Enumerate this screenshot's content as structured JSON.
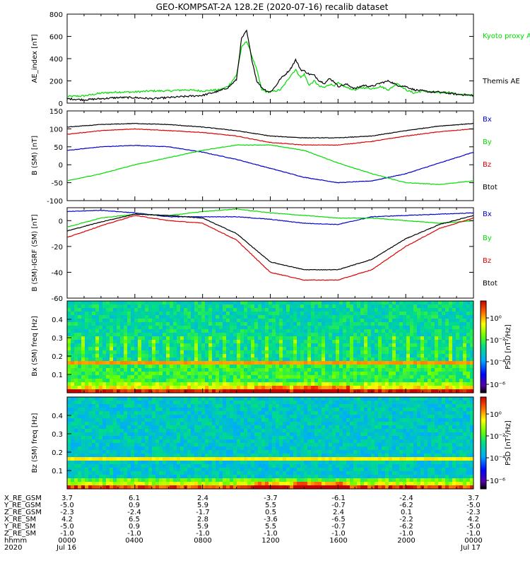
{
  "title": "GEO-KOMPSAT-2A 128.2E (2020-07-16) recalib dataset",
  "chart_data": [
    {
      "type": "line",
      "ylabel": "AE_index [nT]",
      "ylim": [
        0,
        800
      ],
      "yticks": [
        "0",
        "200",
        "400",
        "600",
        "800"
      ],
      "legend_placement": "right",
      "series": [
        {
          "name": "Kyoto proxy AE",
          "color": "#00dd00",
          "x": [
            0,
            1,
            2,
            3,
            4,
            5,
            6,
            7,
            8,
            9,
            9.5,
            10,
            10.3,
            10.6,
            10.9,
            11.2,
            11.5,
            11.8,
            12,
            12.3,
            12.6,
            12.9,
            13.2,
            13.5,
            13.8,
            14,
            14.3,
            14.6,
            14.9,
            15.2,
            15.5,
            15.8,
            16,
            16.5,
            17,
            17.5,
            18,
            18.5,
            19,
            19.5,
            20,
            20.5,
            21,
            21.5,
            22,
            22.5,
            23,
            24
          ],
          "y": [
            60,
            65,
            90,
            100,
            100,
            110,
            110,
            120,
            110,
            120,
            150,
            250,
            500,
            560,
            430,
            300,
            120,
            100,
            100,
            110,
            120,
            180,
            250,
            300,
            230,
            260,
            160,
            200,
            150,
            140,
            170,
            160,
            180,
            140,
            120,
            140,
            130,
            150,
            120,
            180,
            120,
            90,
            110,
            100,
            90,
            100,
            80,
            70
          ]
        },
        {
          "name": "Themis AE",
          "color": "#000000",
          "x": [
            0,
            1,
            2,
            3,
            4,
            5,
            6,
            7,
            8,
            9,
            9.5,
            10,
            10.3,
            10.6,
            10.9,
            11.2,
            11.5,
            11.8,
            12,
            12.3,
            12.6,
            12.9,
            13.2,
            13.5,
            13.8,
            14,
            14.3,
            14.6,
            14.9,
            15.2,
            15.5,
            15.8,
            16,
            16.5,
            17,
            17.5,
            18,
            18.5,
            19,
            19.5,
            20,
            20.5,
            21,
            21.5,
            22,
            22.5,
            23,
            24
          ],
          "y": [
            40,
            30,
            40,
            50,
            50,
            40,
            50,
            60,
            70,
            110,
            140,
            210,
            580,
            650,
            400,
            200,
            140,
            110,
            100,
            150,
            220,
            260,
            310,
            390,
            300,
            290,
            260,
            250,
            200,
            180,
            220,
            190,
            150,
            170,
            130,
            160,
            150,
            180,
            200,
            160,
            150,
            120,
            110,
            100,
            100,
            90,
            80,
            70
          ]
        }
      ]
    },
    {
      "type": "line",
      "ylabel": "B (SM) [nT]",
      "ylim": [
        -100,
        150
      ],
      "yticks": [
        "-100",
        "-50",
        "0",
        "50",
        "100",
        "150"
      ],
      "legend_placement": "right",
      "series": [
        {
          "name": "Bx",
          "color": "#0000cc",
          "x": [
            0,
            2,
            4,
            6,
            8,
            10,
            12,
            14,
            16,
            18,
            20,
            22,
            24
          ],
          "y": [
            40,
            50,
            54,
            50,
            35,
            15,
            -10,
            -35,
            -50,
            -45,
            -25,
            5,
            35
          ]
        },
        {
          "name": "By",
          "color": "#00dd00",
          "x": [
            0,
            2,
            4,
            6,
            8,
            10,
            12,
            14,
            16,
            18,
            20,
            22,
            24
          ],
          "y": [
            -45,
            -25,
            0,
            20,
            40,
            55,
            55,
            40,
            5,
            -25,
            -50,
            -55,
            -45
          ]
        },
        {
          "name": "Bz",
          "color": "#dd0000",
          "x": [
            0,
            2,
            4,
            6,
            8,
            10,
            12,
            14,
            16,
            18,
            20,
            22,
            24
          ],
          "y": [
            85,
            95,
            100,
            95,
            90,
            80,
            62,
            55,
            55,
            65,
            80,
            92,
            100
          ]
        },
        {
          "name": "Btot",
          "color": "#000000",
          "x": [
            0,
            2,
            4,
            6,
            8,
            10,
            12,
            14,
            16,
            18,
            20,
            22,
            24
          ],
          "y": [
            105,
            112,
            115,
            112,
            105,
            95,
            80,
            75,
            75,
            80,
            95,
            108,
            115
          ]
        }
      ]
    },
    {
      "type": "line",
      "ylabel": "B (SM)-IGRF (SM) [nT]",
      "ylim": [
        -60,
        10
      ],
      "yticks": [
        "-60",
        "-40",
        "-20",
        "0"
      ],
      "legend_placement": "right",
      "series": [
        {
          "name": "Bx",
          "color": "#0000cc",
          "x": [
            0,
            2,
            4,
            6,
            8,
            10,
            12,
            14,
            16,
            18,
            20,
            22,
            24
          ],
          "y": [
            7,
            8,
            6,
            3,
            3,
            3,
            1,
            -2,
            -3,
            3,
            4,
            5,
            6
          ]
        },
        {
          "name": "By",
          "color": "#00dd00",
          "x": [
            0,
            2,
            4,
            6,
            8,
            10,
            12,
            14,
            16,
            18,
            20,
            22,
            24
          ],
          "y": [
            -5,
            2,
            5,
            4,
            7,
            9,
            6,
            4,
            2,
            2,
            0,
            -2,
            0
          ]
        },
        {
          "name": "Bz",
          "color": "#dd0000",
          "x": [
            0,
            2,
            4,
            6,
            8,
            10,
            12,
            14,
            16,
            18,
            20,
            22,
            24
          ],
          "y": [
            -13,
            -4,
            4,
            0,
            -2,
            -15,
            -40,
            -46,
            -46,
            -38,
            -20,
            -6,
            2
          ]
        },
        {
          "name": "Btot",
          "color": "#000000",
          "x": [
            0,
            2,
            4,
            6,
            8,
            10,
            12,
            14,
            16,
            18,
            20,
            22,
            24
          ],
          "y": [
            -8,
            -1,
            5,
            4,
            2,
            -10,
            -32,
            -38,
            -38,
            -30,
            -14,
            -3,
            4
          ]
        }
      ]
    },
    {
      "type": "heatmap",
      "ylabel": "Bx (SM) freq [Hz]",
      "ylim": [
        0,
        0.5
      ],
      "yticks": [
        "0.1",
        "0.2",
        "0.3",
        "0.4"
      ],
      "colorbar": {
        "label": "PSD [nT²/Hz]",
        "ticks": [
          "10⁰",
          "10⁻²",
          "10⁻⁴",
          "10⁻⁶"
        ]
      }
    },
    {
      "type": "heatmap",
      "ylabel": "Bz (SM) freq [Hz]",
      "ylim": [
        0,
        0.5
      ],
      "yticks": [
        "0.1",
        "0.2",
        "0.3",
        "0.4"
      ],
      "colorbar": {
        "label": "PSD [nT²/Hz]",
        "ticks": [
          "10⁰",
          "10⁻²",
          "10⁻⁴",
          "10⁻⁶"
        ]
      }
    }
  ],
  "legends": {
    "panel1": [
      "Kyoto proxy AE",
      "Themis AE"
    ],
    "panel2": [
      "Bx",
      "By",
      "Bz",
      "Btot"
    ],
    "panel3": [
      "Bx",
      "By",
      "Bz",
      "Btot"
    ]
  },
  "colors": {
    "kyoto": "#00dd00",
    "themis": "#000000",
    "bx": "#0000cc",
    "by": "#00dd00",
    "bz": "#dd0000",
    "btot": "#000000"
  },
  "bottom_table": {
    "rows": [
      {
        "label": "X_RE_GSM",
        "values": [
          "3.7",
          "6.1",
          "2.4",
          "-3.7",
          "-6.1",
          "-2.4",
          "3.7"
        ]
      },
      {
        "label": "Y_RE_GSM",
        "values": [
          "-5.0",
          "0.9",
          "5.9",
          "5.5",
          "-0.7",
          "-6.2",
          "-5.0"
        ]
      },
      {
        "label": "Z_RE_GSM",
        "values": [
          "-2.3",
          "-2.4",
          "-1.7",
          "0.5",
          "2.4",
          "0.1",
          "-2.3"
        ]
      },
      {
        "label": "X_RE_SM",
        "values": [
          "4.2",
          "6.5",
          "2.8",
          "-3.6",
          "-6.5",
          "-2.2",
          "4.2"
        ]
      },
      {
        "label": "Y_RE_SM",
        "values": [
          "-5.0",
          "0.9",
          "5.9",
          "5.5",
          "-0.7",
          "-6.2",
          "-5.0"
        ]
      },
      {
        "label": "Z_RE_SM",
        "values": [
          "-1.0",
          "-1.0",
          "-1.0",
          "-1.0",
          "-1.0",
          "-1.0",
          "-1.0"
        ]
      },
      {
        "label": "hhmm",
        "values": [
          "0000",
          "0400",
          "0800",
          "1200",
          "1600",
          "2000",
          "0000"
        ]
      },
      {
        "label": "2020",
        "values": [
          "Jul 16",
          "",
          "",
          "",
          "",
          "",
          "Jul 17"
        ]
      }
    ]
  }
}
